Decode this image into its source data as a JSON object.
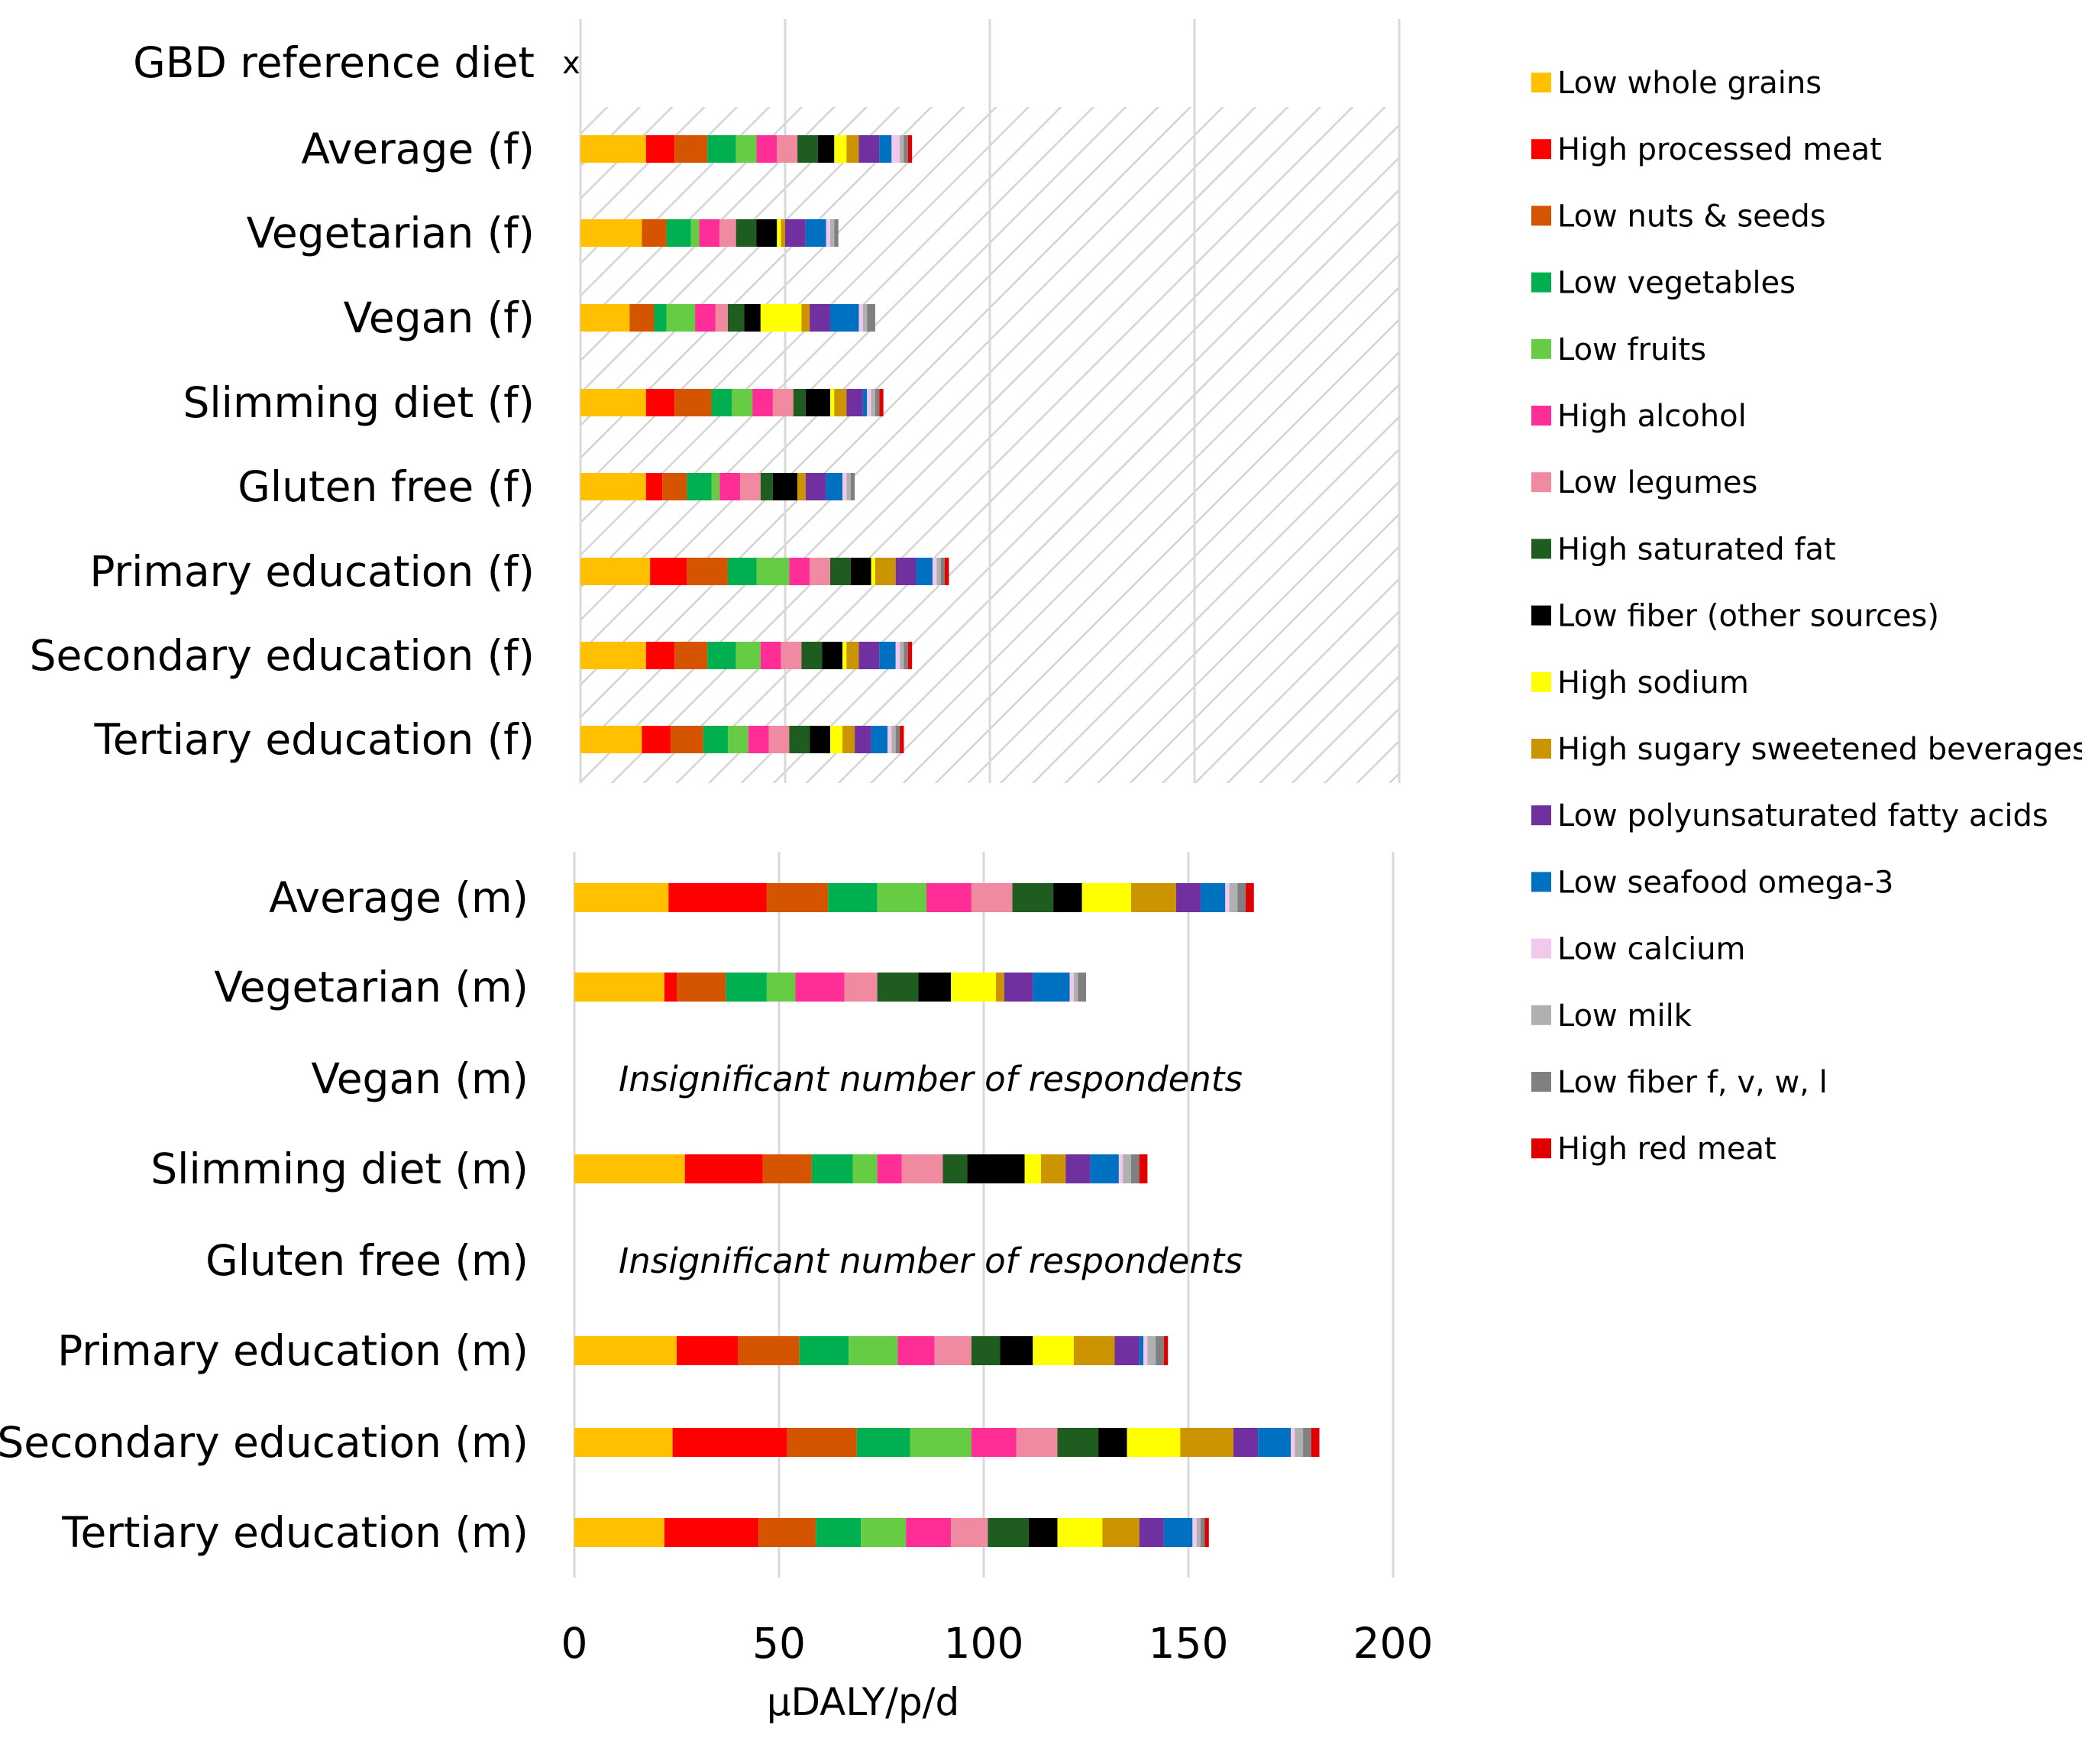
{
  "chart_data": [
    {
      "type": "bar",
      "orientation": "horizontal",
      "stacked": true,
      "panel": "female",
      "background": "hatched",
      "categories": [
        "GBD reference diet",
        "Average (f)",
        "Vegetarian (f)",
        "Vegan (f)",
        "Slimming diet (f)",
        "Gluten free (f)",
        "Primary education (f)",
        "Secondary education (f)",
        "Tertiary education (f)"
      ],
      "reference_marker": "x",
      "series": [
        {
          "name": "Low whole grains",
          "values": [
            0,
            16,
            15,
            12,
            16,
            16,
            17,
            16,
            15
          ]
        },
        {
          "name": "High processed meat",
          "values": [
            0,
            7,
            0,
            0,
            7,
            4,
            9,
            7,
            7
          ]
        },
        {
          "name": "Low nuts & seeds",
          "values": [
            0,
            8,
            6,
            6,
            9,
            6,
            10,
            8,
            8
          ]
        },
        {
          "name": "Low vegetables",
          "values": [
            0,
            7,
            6,
            3,
            5,
            6,
            7,
            7,
            6
          ]
        },
        {
          "name": "Low fruits",
          "values": [
            0,
            5,
            2,
            7,
            5,
            2,
            8,
            6,
            5
          ]
        },
        {
          "name": "High alcohol",
          "values": [
            0,
            5,
            5,
            5,
            5,
            5,
            5,
            5,
            5
          ]
        },
        {
          "name": "Low legumes",
          "values": [
            0,
            5,
            4,
            3,
            5,
            5,
            5,
            5,
            5
          ]
        },
        {
          "name": "High saturated fat",
          "values": [
            0,
            5,
            5,
            4,
            3,
            3,
            5,
            5,
            5
          ]
        },
        {
          "name": "Low fiber (other sources)",
          "values": [
            0,
            4,
            5,
            4,
            6,
            6,
            5,
            5,
            5
          ]
        },
        {
          "name": "High sodium",
          "values": [
            0,
            3,
            1,
            10,
            1,
            0,
            1,
            1,
            3
          ]
        },
        {
          "name": "High sugary sweetened beverages",
          "values": [
            0,
            3,
            1,
            2,
            3,
            2,
            5,
            3,
            3
          ]
        },
        {
          "name": "Low polyunsaturated fatty acids",
          "values": [
            0,
            5,
            5,
            5,
            4,
            5,
            5,
            5,
            4
          ]
        },
        {
          "name": "Low seafood omega-3",
          "values": [
            0,
            3,
            5,
            7,
            1,
            4,
            4,
            4,
            4
          ]
        },
        {
          "name": "Low calcium",
          "values": [
            0,
            2,
            1,
            1,
            1,
            1,
            1,
            1,
            1
          ]
        },
        {
          "name": "Low milk",
          "values": [
            0,
            1,
            1,
            1,
            1,
            1,
            1,
            1,
            1
          ]
        },
        {
          "name": "Low fiber f, v, w, l",
          "values": [
            0,
            1,
            1,
            2,
            1,
            1,
            1,
            1,
            1
          ]
        },
        {
          "name": "High red meat",
          "values": [
            0,
            1,
            0,
            0,
            1,
            0,
            1,
            1,
            1
          ]
        }
      ],
      "xlim": [
        0,
        200
      ]
    },
    {
      "type": "bar",
      "orientation": "horizontal",
      "stacked": true,
      "panel": "male",
      "categories": [
        "Average (m)",
        "Vegetarian (m)",
        "Vegan (m)",
        "Slimming diet (m)",
        "Gluten free (m)",
        "Primary education (m)",
        "Secondary education (m)",
        "Tertiary education (m)"
      ],
      "notes": [
        "",
        "",
        "Insignificant number of respondents",
        "",
        "Insignificant number of respondents",
        "",
        "",
        ""
      ],
      "series": [
        {
          "name": "Low whole grains",
          "values": [
            23,
            22,
            0,
            27,
            0,
            25,
            24,
            22
          ]
        },
        {
          "name": "High processed meat",
          "values": [
            24,
            3,
            0,
            19,
            0,
            15,
            28,
            23
          ]
        },
        {
          "name": "Low nuts & seeds",
          "values": [
            15,
            12,
            0,
            12,
            0,
            15,
            17,
            14
          ]
        },
        {
          "name": "Low vegetables",
          "values": [
            12,
            10,
            0,
            10,
            0,
            12,
            13,
            11
          ]
        },
        {
          "name": "Low fruits",
          "values": [
            12,
            7,
            0,
            6,
            0,
            12,
            15,
            11
          ]
        },
        {
          "name": "High alcohol",
          "values": [
            11,
            12,
            0,
            6,
            0,
            9,
            11,
            11
          ]
        },
        {
          "name": "Low legumes",
          "values": [
            10,
            8,
            0,
            10,
            0,
            9,
            10,
            9
          ]
        },
        {
          "name": "High saturated fat",
          "values": [
            10,
            10,
            0,
            6,
            0,
            7,
            10,
            10
          ]
        },
        {
          "name": "Low fiber (other sources)",
          "values": [
            7,
            8,
            0,
            14,
            0,
            8,
            7,
            7
          ]
        },
        {
          "name": "High sodium",
          "values": [
            12,
            11,
            0,
            4,
            0,
            10,
            13,
            11
          ]
        },
        {
          "name": "High sugary sweetened beverages",
          "values": [
            11,
            2,
            0,
            6,
            0,
            10,
            13,
            9
          ]
        },
        {
          "name": "Low polyunsaturated fatty acids",
          "values": [
            6,
            7,
            0,
            6,
            0,
            6,
            6,
            6
          ]
        },
        {
          "name": "Low seafood omega-3",
          "values": [
            6,
            9,
            0,
            7,
            0,
            1,
            8,
            7
          ]
        },
        {
          "name": "Low calcium",
          "values": [
            1,
            1,
            0,
            1,
            0,
            1,
            1,
            1
          ]
        },
        {
          "name": "Low milk",
          "values": [
            2,
            1,
            0,
            2,
            0,
            2,
            2,
            1
          ]
        },
        {
          "name": "Low fiber f, v, w, l",
          "values": [
            2,
            2,
            0,
            2,
            0,
            2,
            2,
            1
          ]
        },
        {
          "name": "High red meat",
          "values": [
            2,
            0,
            0,
            2,
            0,
            1,
            2,
            1
          ]
        }
      ],
      "xticks": [
        "0",
        "50",
        "100",
        "150",
        "200"
      ],
      "xlim": [
        0,
        200
      ],
      "xlabel": "µDALY/p/d"
    }
  ],
  "legend": {
    "position": "right",
    "items": [
      {
        "label": "Low whole grains",
        "color": "#FFC000"
      },
      {
        "label": "High processed meat",
        "color": "#FF0000"
      },
      {
        "label": "Low nuts & seeds",
        "color": "#D55400"
      },
      {
        "label": "Low vegetables",
        "color": "#00B050"
      },
      {
        "label": "Low fruits",
        "color": "#66CC44"
      },
      {
        "label": "High alcohol",
        "color": "#FF2E96"
      },
      {
        "label": "Low legumes",
        "color": "#F08AA0"
      },
      {
        "label": "High saturated fat",
        "color": "#1F5C1F"
      },
      {
        "label": "Low fiber (other sources)",
        "color": "#000000"
      },
      {
        "label": "High sodium",
        "color": "#FFFF00"
      },
      {
        "label": "High sugary sweetened beverages",
        "color": "#CC9400"
      },
      {
        "label": "Low polyunsaturated fatty acids",
        "color": "#7030A0"
      },
      {
        "label": "Low seafood omega-3",
        "color": "#0070C0"
      },
      {
        "label": "Low calcium",
        "color": "#F2C8EC"
      },
      {
        "label": "Low milk",
        "color": "#B0B0B0"
      },
      {
        "label": "Low fiber f, v, w, l",
        "color": "#808080"
      },
      {
        "label": "High red meat",
        "color": "#E00000"
      }
    ]
  }
}
